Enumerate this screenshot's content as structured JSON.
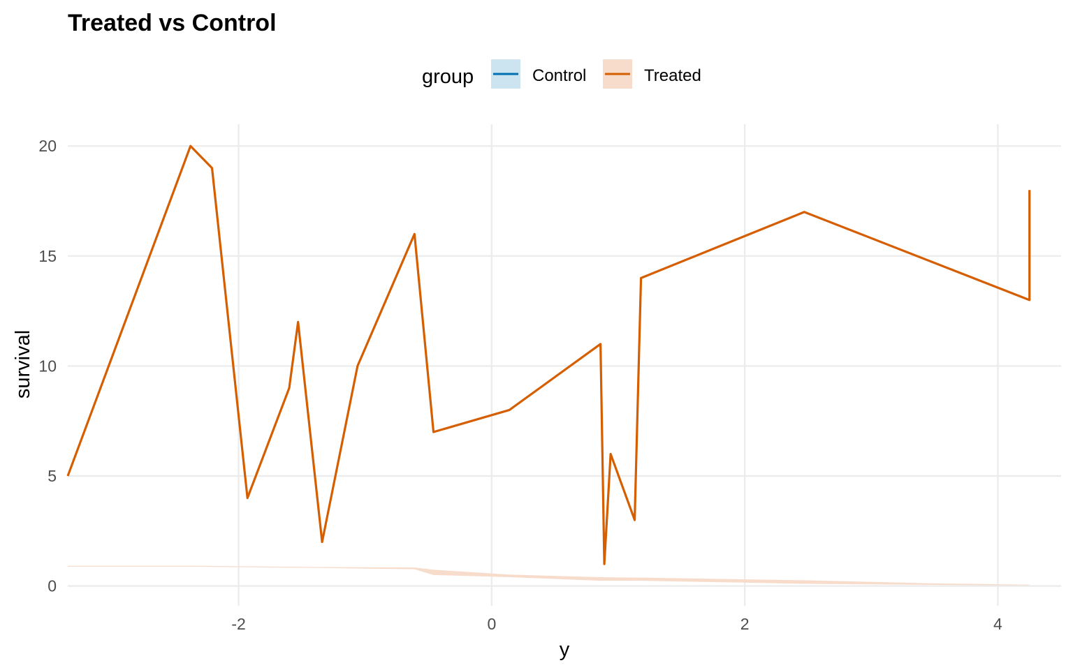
{
  "chart_data": {
    "type": "line",
    "title": "Treated vs Control",
    "xlabel": "y",
    "ylabel": "survival",
    "xlim": [
      -3.35,
      4.5
    ],
    "ylim": [
      -0.9,
      20.99
    ],
    "x_ticks": [
      -2,
      0,
      2,
      4
    ],
    "x_tick_labels": [
      "-2",
      "0",
      "2",
      "4"
    ],
    "y_ticks": [
      0,
      5,
      10,
      15,
      20
    ],
    "y_tick_labels": [
      "0",
      "5",
      "10",
      "15",
      "20"
    ],
    "grid": true,
    "legend": {
      "title": "group",
      "position": "top",
      "entries": [
        {
          "label": "Control",
          "line_color": "#0072B2",
          "fill_color": "#CCE3F0"
        },
        {
          "label": "Treated",
          "line_color": "#D55E00",
          "fill_color": "#F7DCCC"
        }
      ]
    },
    "series": [
      {
        "name": "Treated",
        "color": "#D55E00",
        "points": [
          {
            "x": -3.35,
            "y": 5
          },
          {
            "x": -2.38,
            "y": 20
          },
          {
            "x": -2.21,
            "y": 19
          },
          {
            "x": -1.93,
            "y": 4
          },
          {
            "x": -1.6,
            "y": 9
          },
          {
            "x": -1.53,
            "y": 12
          },
          {
            "x": -1.34,
            "y": 2
          },
          {
            "x": -1.06,
            "y": 10
          },
          {
            "x": -0.61,
            "y": 16
          },
          {
            "x": -0.46,
            "y": 7
          },
          {
            "x": 0.14,
            "y": 8
          },
          {
            "x": 0.86,
            "y": 11
          },
          {
            "x": 0.89,
            "y": 1
          },
          {
            "x": 0.94,
            "y": 6
          },
          {
            "x": 1.13,
            "y": 3
          },
          {
            "x": 1.18,
            "y": 14
          },
          {
            "x": 2.47,
            "y": 17
          },
          {
            "x": 4.25,
            "y": 13
          },
          {
            "x": 4.25,
            "y": 18
          }
        ]
      },
      {
        "name": "Control",
        "color": "#0072B2",
        "points": []
      }
    ],
    "bands": [
      {
        "group": "Treated",
        "color": "#F7DCCC",
        "points": [
          {
            "x": -3.35,
            "lo": 0.88,
            "hi": 0.92
          },
          {
            "x": -2.38,
            "lo": 0.88,
            "hi": 0.92
          },
          {
            "x": -1.34,
            "lo": 0.82,
            "hi": 0.86
          },
          {
            "x": -0.61,
            "lo": 0.76,
            "hi": 0.84
          },
          {
            "x": -0.46,
            "lo": 0.5,
            "hi": 0.74
          },
          {
            "x": 0.14,
            "lo": 0.4,
            "hi": 0.52
          },
          {
            "x": 0.86,
            "lo": 0.24,
            "hi": 0.4
          },
          {
            "x": 1.18,
            "lo": 0.24,
            "hi": 0.38
          },
          {
            "x": 2.47,
            "lo": 0.1,
            "hi": 0.26
          },
          {
            "x": 3.5,
            "lo": 0.05,
            "hi": 0.12
          },
          {
            "x": 4.25,
            "lo": 0.03,
            "hi": 0.06
          }
        ]
      }
    ]
  }
}
